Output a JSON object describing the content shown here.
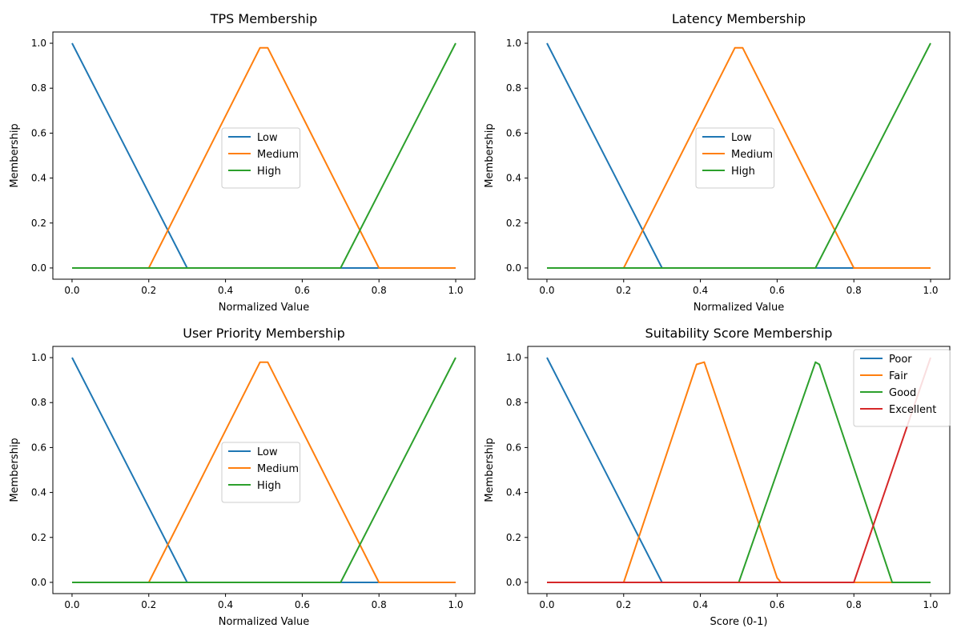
{
  "colors": {
    "c0": "#1f77b4",
    "c1": "#ff7f0e",
    "c2": "#2ca02c",
    "c3": "#d62728"
  },
  "chart_data": [
    {
      "type": "line",
      "title": "TPS Membership",
      "xlabel": "Normalized Value",
      "ylabel": "Membership",
      "xlim": [
        -0.05,
        1.05
      ],
      "ylim": [
        -0.05,
        1.05
      ],
      "xticks": [
        0.0,
        0.2,
        0.4,
        0.6,
        0.8,
        1.0
      ],
      "yticks": [
        0.0,
        0.2,
        0.4,
        0.6,
        0.8,
        1.0
      ],
      "legend": "center",
      "series": [
        {
          "name": "Low",
          "color": "#1f77b4",
          "x": [
            0,
            0.3,
            0.31,
            1
          ],
          "y": [
            1,
            0,
            0,
            0
          ]
        },
        {
          "name": "Medium",
          "color": "#ff7f0e",
          "x": [
            0,
            0.2,
            0.49,
            0.51,
            0.8,
            1
          ],
          "y": [
            0,
            0,
            0.98,
            0.98,
            0,
            0
          ]
        },
        {
          "name": "High",
          "color": "#2ca02c",
          "x": [
            0,
            0.7,
            1
          ],
          "y": [
            0,
            0,
            1
          ]
        }
      ]
    },
    {
      "type": "line",
      "title": "Latency Membership",
      "xlabel": "Normalized Value",
      "ylabel": "Membership",
      "xlim": [
        -0.05,
        1.05
      ],
      "ylim": [
        -0.05,
        1.05
      ],
      "xticks": [
        0.0,
        0.2,
        0.4,
        0.6,
        0.8,
        1.0
      ],
      "yticks": [
        0.0,
        0.2,
        0.4,
        0.6,
        0.8,
        1.0
      ],
      "legend": "center",
      "series": [
        {
          "name": "Low",
          "color": "#1f77b4",
          "x": [
            0,
            0.3,
            0.31,
            1
          ],
          "y": [
            1,
            0,
            0,
            0
          ]
        },
        {
          "name": "Medium",
          "color": "#ff7f0e",
          "x": [
            0,
            0.2,
            0.49,
            0.51,
            0.8,
            1
          ],
          "y": [
            0,
            0,
            0.98,
            0.98,
            0,
            0
          ]
        },
        {
          "name": "High",
          "color": "#2ca02c",
          "x": [
            0,
            0.7,
            1
          ],
          "y": [
            0,
            0,
            1
          ]
        }
      ]
    },
    {
      "type": "line",
      "title": "User Priority Membership",
      "xlabel": "Normalized Value",
      "ylabel": "Membership",
      "xlim": [
        -0.05,
        1.05
      ],
      "ylim": [
        -0.05,
        1.05
      ],
      "xticks": [
        0.0,
        0.2,
        0.4,
        0.6,
        0.8,
        1.0
      ],
      "yticks": [
        0.0,
        0.2,
        0.4,
        0.6,
        0.8,
        1.0
      ],
      "legend": "center",
      "series": [
        {
          "name": "Low",
          "color": "#1f77b4",
          "x": [
            0,
            0.3,
            0.31,
            1
          ],
          "y": [
            1,
            0,
            0,
            0
          ]
        },
        {
          "name": "Medium",
          "color": "#ff7f0e",
          "x": [
            0,
            0.2,
            0.49,
            0.51,
            0.8,
            1
          ],
          "y": [
            0,
            0,
            0.98,
            0.98,
            0,
            0
          ]
        },
        {
          "name": "High",
          "color": "#2ca02c",
          "x": [
            0,
            0.7,
            1
          ],
          "y": [
            0,
            0,
            1
          ]
        }
      ]
    },
    {
      "type": "line",
      "title": "Suitability Score Membership",
      "xlabel": "Score (0-1)",
      "ylabel": "Membership",
      "xlim": [
        -0.05,
        1.05
      ],
      "ylim": [
        -0.05,
        1.05
      ],
      "xticks": [
        0.0,
        0.2,
        0.4,
        0.6,
        0.8,
        1.0
      ],
      "yticks": [
        0.0,
        0.2,
        0.4,
        0.6,
        0.8,
        1.0
      ],
      "legend": "upper right",
      "series": [
        {
          "name": "Poor",
          "color": "#1f77b4",
          "x": [
            0,
            0.3,
            0.31,
            1
          ],
          "y": [
            1,
            0,
            0,
            0
          ]
        },
        {
          "name": "Fair",
          "color": "#ff7f0e",
          "x": [
            0,
            0.2,
            0.39,
            0.41,
            0.6,
            0.61,
            1
          ],
          "y": [
            0,
            0,
            0.97,
            0.98,
            0.02,
            0,
            0
          ]
        },
        {
          "name": "Good",
          "color": "#2ca02c",
          "x": [
            0,
            0.5,
            0.7,
            0.71,
            0.9,
            1
          ],
          "y": [
            0,
            0,
            0.98,
            0.97,
            0,
            0
          ]
        },
        {
          "name": "Excellent",
          "color": "#d62728",
          "x": [
            0,
            0.8,
            1
          ],
          "y": [
            0,
            0,
            1
          ]
        }
      ]
    }
  ]
}
